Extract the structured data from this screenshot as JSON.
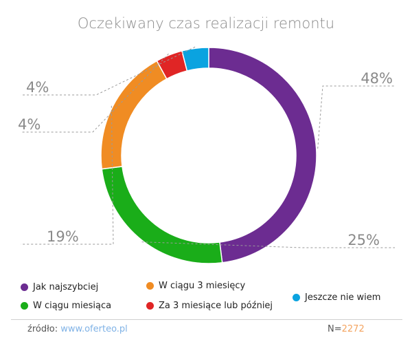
{
  "chart_data": {
    "type": "pie",
    "title": "Oczekiwany czas realizacji remontu",
    "categories": [
      "Jak najszybciej",
      "W ciągu miesiąca",
      "W ciągu 3 miesięcy",
      "Za 3 miesiące lub później",
      "Jeszcze nie wiem"
    ],
    "values": [
      48,
      25,
      19,
      4,
      4
    ],
    "value_labels": [
      "48%",
      "25%",
      "19%",
      "4%",
      "4%"
    ],
    "colors": [
      "#6c2c91",
      "#1aad19",
      "#f08c23",
      "#e02525",
      "#0aa3e0"
    ],
    "donut": true,
    "legend_position": "bottom"
  },
  "footer": {
    "source_label": "źródło:",
    "source_link": "www.oferteo.pl",
    "sample_label": "N=",
    "sample_value": "2272"
  }
}
